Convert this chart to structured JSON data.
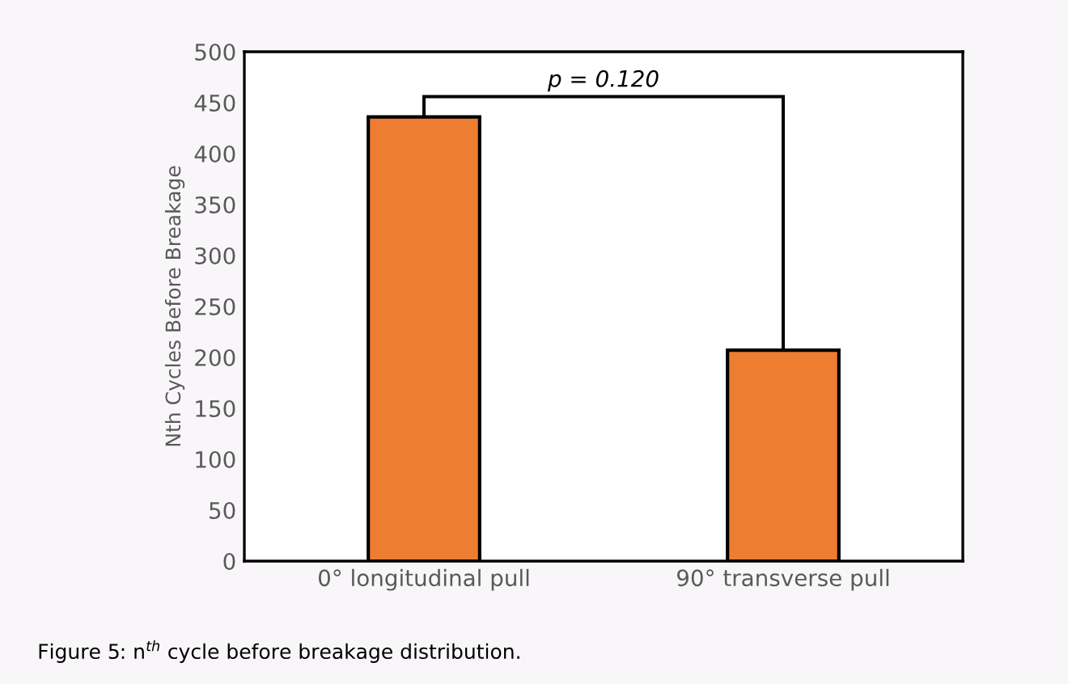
{
  "chart_data": {
    "type": "bar",
    "ylabel": "Nth Cycles Before Breakage",
    "categories": [
      "0° longitudinal pull",
      "90° transverse pull"
    ],
    "values": [
      436,
      207
    ],
    "color": "#ed7d31",
    "ylim": [
      0,
      500
    ],
    "yticks": [
      0,
      50,
      100,
      150,
      200,
      250,
      300,
      350,
      400,
      450,
      500
    ],
    "grid": false,
    "annotations": [
      "p = 0.120",
      "Figure 5: n$^{th}$ cycle before breakage distribution."
    ]
  }
}
